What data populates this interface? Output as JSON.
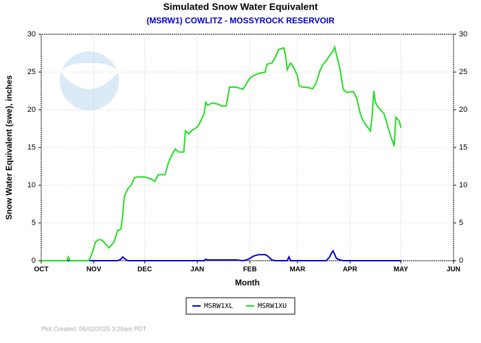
{
  "chart_data": {
    "type": "line",
    "title": "Simulated Snow Water Equivalent",
    "subtitle": "(MSRW1) COWLITZ - MOSSYROCK RESERVOIR",
    "x_label": "Month",
    "y_label": "Snow Water Equivalent (swe),  inches",
    "footnote": "Plot Created: 05/02/2025 3:26am PDT",
    "logo_text": "NOAA",
    "grid": true,
    "legend_position": "bottom",
    "xlim": [
      0,
      243
    ],
    "xticks": [
      {
        "value": 0,
        "label": "OCT"
      },
      {
        "value": 31,
        "label": "NOV"
      },
      {
        "value": 61,
        "label": "DEC"
      },
      {
        "value": 92,
        "label": "JAN"
      },
      {
        "value": 123,
        "label": "FEB"
      },
      {
        "value": 151,
        "label": "MAR"
      },
      {
        "value": 182,
        "label": "APR"
      },
      {
        "value": 212,
        "label": "MAY"
      },
      {
        "value": 243,
        "label": "JUN"
      }
    ],
    "ylim": [
      0,
      30
    ],
    "yticks": [
      0,
      5,
      10,
      15,
      20,
      25,
      30
    ],
    "x": [
      0,
      15,
      16,
      17,
      28,
      30,
      32,
      34,
      36,
      38,
      40,
      43,
      45,
      47,
      48,
      49,
      51,
      53,
      55,
      57,
      61,
      65,
      67,
      69,
      73,
      75,
      77,
      79,
      81,
      84,
      85,
      87,
      89,
      92,
      94,
      96,
      97,
      98,
      101,
      105,
      106,
      109,
      111,
      115,
      119,
      121,
      123,
      125,
      128,
      130,
      132,
      133,
      134,
      136,
      138,
      140,
      143,
      144,
      145,
      146,
      147,
      149,
      151,
      152,
      154,
      156,
      160,
      162,
      164,
      166,
      168,
      170,
      171,
      172,
      173,
      174,
      176,
      178,
      180,
      184,
      186,
      188,
      190,
      192,
      194,
      195,
      196,
      197,
      198,
      200,
      202,
      204,
      206,
      208,
      209,
      211,
      212
    ],
    "series": [
      {
        "name": "MSRW1XL",
        "color": "#0000cc",
        "values": [
          0,
          0,
          0,
          0,
          0,
          0,
          0,
          0,
          0,
          0,
          0,
          0,
          0,
          0.2,
          0.5,
          0.3,
          0,
          0,
          0,
          0,
          0,
          0,
          0,
          0,
          0,
          0,
          0,
          0,
          0,
          0,
          0,
          0,
          0,
          0,
          0,
          0,
          0.2,
          0.1,
          0.1,
          0.1,
          0.1,
          0.1,
          0.1,
          0.1,
          0,
          0.1,
          0.3,
          0.6,
          0.8,
          0.8,
          0.8,
          0.7,
          0.5,
          0.1,
          0,
          0,
          0,
          0,
          0,
          0.5,
          0,
          0,
          0,
          0,
          0,
          0,
          0,
          0,
          0,
          0,
          0,
          0.5,
          1.0,
          1.3,
          0.8,
          0.3,
          0.1,
          0,
          0,
          0,
          0,
          0,
          0,
          0,
          0,
          0,
          0,
          0,
          0,
          0,
          0,
          0,
          0,
          0,
          0,
          0,
          0
        ]
      },
      {
        "name": "MSRW1XU",
        "color": "#22dd22",
        "values": [
          0,
          0,
          0.5,
          0,
          0,
          1,
          2.5,
          2.8,
          2.7,
          2.2,
          1.7,
          2.5,
          4.0,
          4.2,
          6,
          8.5,
          9.5,
          10,
          11,
          11.1,
          11.1,
          10.8,
          10.5,
          11.4,
          11.4,
          13,
          14,
          14.8,
          14.4,
          14.4,
          17.2,
          16.8,
          17.3,
          17.7,
          18.5,
          19.5,
          21,
          20.6,
          20.9,
          20.7,
          20.5,
          20.5,
          23,
          23,
          22.7,
          23.5,
          24.2,
          24.5,
          24.8,
          24.9,
          25,
          26,
          26.1,
          26.2,
          27,
          28,
          28.2,
          27.2,
          25.3,
          25.8,
          26.2,
          25.5,
          24.5,
          23.2,
          23,
          23,
          22.8,
          23.5,
          25,
          26,
          26.5,
          27.2,
          27.5,
          27.8,
          28.3,
          27.3,
          25.5,
          22.7,
          22.3,
          22.4,
          21.5,
          19.5,
          18.4,
          17.8,
          17.2,
          19,
          22.5,
          21,
          20.5,
          20,
          19.5,
          18,
          16.5,
          15.2,
          19,
          18.5,
          17.6
        ]
      }
    ]
  }
}
